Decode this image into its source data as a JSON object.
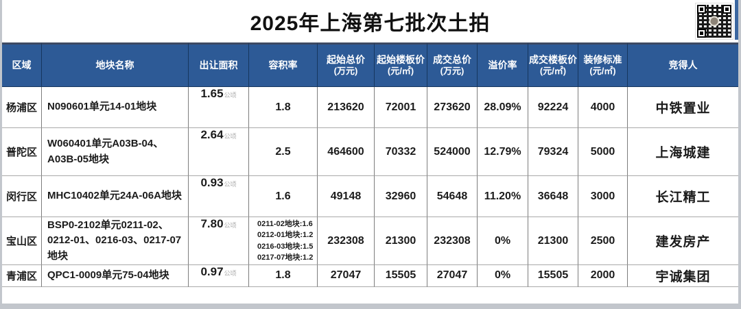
{
  "chart_data": {
    "type": "table",
    "title": "2025年上海第七批次土拍",
    "columns": [
      {
        "label": "区域"
      },
      {
        "label": "地块名称"
      },
      {
        "label": "出让面积"
      },
      {
        "label": "容积率"
      },
      {
        "label": "起始总价",
        "unit": "(万元)"
      },
      {
        "label": "起始楼板价",
        "unit": "(元/㎡)"
      },
      {
        "label": "成交总价",
        "unit": "(万元)"
      },
      {
        "label": "溢价率"
      },
      {
        "label": "成交楼板价",
        "unit": "(元/㎡)"
      },
      {
        "label": "装修标准",
        "unit": "(元/㎡)"
      },
      {
        "label": "竞得人"
      }
    ],
    "area_unit": "公顷",
    "rows": [
      {
        "region": "杨浦区",
        "name": "N090601单元14-01地块",
        "area": "1.65",
        "far": "1.8",
        "start_total": "213620",
        "start_floor": "72001",
        "deal_total": "273620",
        "premium": "28.09%",
        "deal_floor": "92224",
        "decoration": "4000",
        "winner": "中铁置业"
      },
      {
        "region": "普陀区",
        "name": "W060401单元A03B-04、A03B-05地块",
        "area": "2.64",
        "far": "2.5",
        "start_total": "464600",
        "start_floor": "70332",
        "deal_total": "524000",
        "premium": "12.79%",
        "deal_floor": "79324",
        "decoration": "5000",
        "winner": "上海城建"
      },
      {
        "region": "闵行区",
        "name": "MHC10402单元24A-06A地块",
        "area": "0.93",
        "far": "1.6",
        "start_total": "49148",
        "start_floor": "32960",
        "deal_total": "54648",
        "premium": "11.20%",
        "deal_floor": "36648",
        "decoration": "3000",
        "winner": "长江精工"
      },
      {
        "region": "宝山区",
        "name": "BSP0-2102单元0211-02、0212-01、0216-03、0217-07地块",
        "area": "7.80",
        "far": "0211-02地块:1.6\n0212-01地块:1.2\n0216-03地块:1.5\n0217-07地块:1.2",
        "start_total": "232308",
        "start_floor": "21300",
        "deal_total": "232308",
        "premium": "0%",
        "deal_floor": "21300",
        "decoration": "2500",
        "winner": "建发房产"
      },
      {
        "region": "青浦区",
        "name": "QPC1-0009单元75-04地块",
        "area": "0.97",
        "far": "1.8",
        "start_total": "27047",
        "start_floor": "15505",
        "deal_total": "27047",
        "premium": "0%",
        "deal_floor": "15505",
        "decoration": "2000",
        "winner": "宇诚集团"
      }
    ]
  }
}
